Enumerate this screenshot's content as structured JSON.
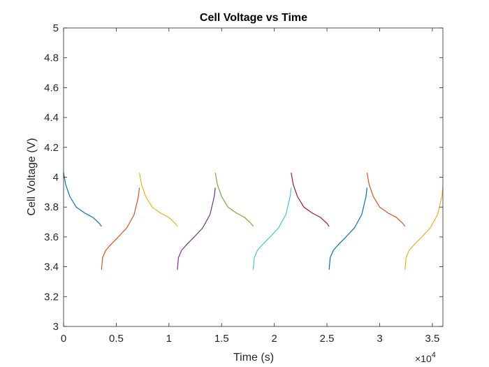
{
  "chart_data": {
    "type": "line",
    "title": "Cell Voltage vs Time",
    "xlabel": "Time (s)",
    "ylabel": "Cell Voltage (V)",
    "xlim": [
      0,
      36000
    ],
    "ylim": [
      3,
      5
    ],
    "x_tick_labels": [
      "0",
      "0.5",
      "1",
      "1.5",
      "2",
      "2.5",
      "3",
      "3.5"
    ],
    "x_ticks": [
      0,
      5000,
      10000,
      15000,
      20000,
      25000,
      30000,
      35000
    ],
    "x_exponent_label": "×10",
    "x_exponent_power": "4",
    "y_ticks": [
      3,
      3.2,
      3.4,
      3.6,
      3.8,
      4,
      4.2,
      4.4,
      4.6,
      4.8,
      5
    ],
    "y_tick_labels": [
      "3",
      "3.2",
      "3.4",
      "3.6",
      "3.8",
      "4",
      "4.2",
      "4.4",
      "4.6",
      "4.8",
      "5"
    ],
    "grid": false,
    "series": [
      {
        "color": "#0072BD",
        "x": [
          0,
          200,
          600,
          1200,
          2000,
          2800,
          3400,
          3600
        ],
        "y": [
          4.03,
          3.95,
          3.87,
          3.8,
          3.76,
          3.73,
          3.69,
          3.67
        ]
      },
      {
        "color": "#D95319",
        "x": [
          3600,
          3700,
          4000,
          4500,
          5200,
          6000,
          6700,
          7100,
          7200
        ],
        "y": [
          3.38,
          3.46,
          3.51,
          3.55,
          3.6,
          3.66,
          3.75,
          3.87,
          3.93
        ]
      },
      {
        "color": "#EDB120",
        "x": [
          7200,
          7400,
          7800,
          8400,
          9200,
          10000,
          10600,
          10800
        ],
        "y": [
          4.03,
          3.95,
          3.87,
          3.8,
          3.76,
          3.73,
          3.69,
          3.67
        ]
      },
      {
        "color": "#7E2F8E",
        "x": [
          10800,
          10900,
          11200,
          11700,
          12400,
          13200,
          13900,
          14300,
          14400
        ],
        "y": [
          3.38,
          3.46,
          3.51,
          3.55,
          3.6,
          3.66,
          3.75,
          3.87,
          3.93
        ]
      },
      {
        "color": "#77AC30",
        "x": [
          14400,
          14600,
          15000,
          15600,
          16400,
          17200,
          17800,
          18000
        ],
        "y": [
          4.03,
          3.95,
          3.87,
          3.8,
          3.76,
          3.73,
          3.69,
          3.67
        ]
      },
      {
        "color": "#4DBEEE",
        "x": [
          18000,
          18100,
          18400,
          18900,
          19600,
          20400,
          21100,
          21500,
          21600
        ],
        "y": [
          3.38,
          3.46,
          3.51,
          3.55,
          3.6,
          3.66,
          3.75,
          3.87,
          3.93
        ]
      },
      {
        "color": "#A2142F",
        "x": [
          21600,
          21800,
          22200,
          22800,
          23600,
          24400,
          25000,
          25200
        ],
        "y": [
          4.03,
          3.95,
          3.87,
          3.8,
          3.76,
          3.73,
          3.69,
          3.67
        ]
      },
      {
        "color": "#0072BD",
        "x": [
          25200,
          25300,
          25600,
          26100,
          26800,
          27600,
          28300,
          28700,
          28800
        ],
        "y": [
          3.38,
          3.46,
          3.51,
          3.55,
          3.6,
          3.66,
          3.75,
          3.87,
          3.93
        ]
      },
      {
        "color": "#D95319",
        "x": [
          28800,
          29000,
          29400,
          30000,
          30800,
          31600,
          32200,
          32400
        ],
        "y": [
          4.03,
          3.95,
          3.87,
          3.8,
          3.76,
          3.73,
          3.69,
          3.67
        ]
      },
      {
        "color": "#EDB120",
        "x": [
          32400,
          32500,
          32800,
          33300,
          34000,
          34800,
          35500,
          35900,
          36000
        ],
        "y": [
          3.38,
          3.46,
          3.51,
          3.55,
          3.6,
          3.66,
          3.75,
          3.87,
          3.93
        ]
      }
    ]
  }
}
